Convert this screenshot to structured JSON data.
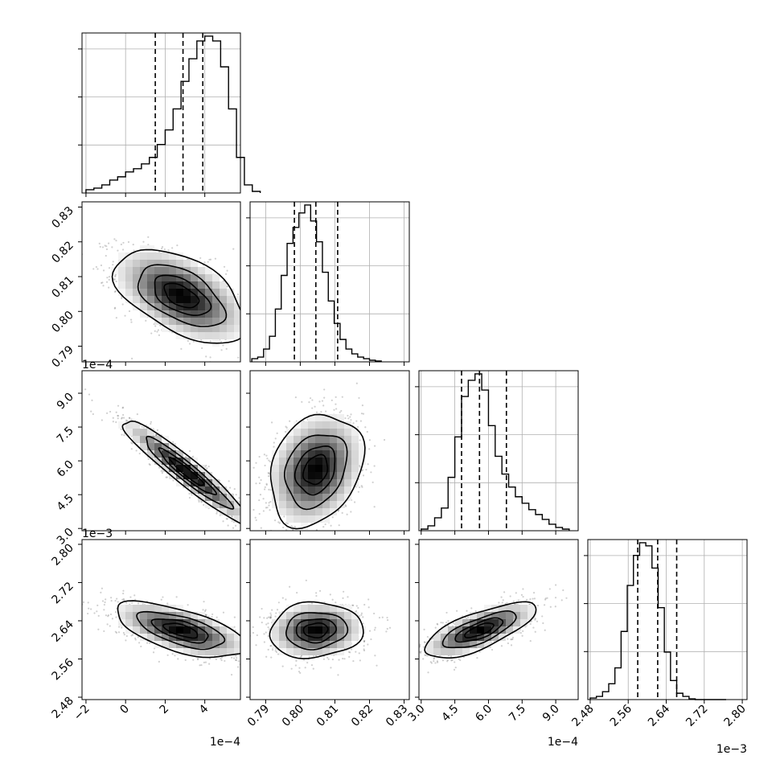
{
  "chart_data": {
    "type": "corner",
    "parameters": [
      {
        "axis_ticks": [
          -2,
          0,
          2,
          4
        ],
        "tick_labels": [
          "−2",
          "0",
          "2",
          "4"
        ],
        "axis_range": [
          -2.2,
          5.8
        ],
        "offset_label": "1e−4",
        "quantiles": [
          1.5,
          2.9,
          3.9
        ],
        "histogram": {
          "bin_start": -2.0,
          "bin_width": 0.4,
          "counts": [
            0.02,
            0.03,
            0.05,
            0.08,
            0.1,
            0.13,
            0.15,
            0.18,
            0.22,
            0.3,
            0.39,
            0.52,
            0.69,
            0.83,
            0.94,
            0.97,
            0.94,
            0.78,
            0.52,
            0.22,
            0.05,
            0.01
          ]
        }
      },
      {
        "axis_ticks": [
          0.79,
          0.8,
          0.81,
          0.82,
          0.83
        ],
        "tick_labels": [
          "0.79",
          "0.80",
          "0.81",
          "0.82",
          "0.83"
        ],
        "axis_range": [
          0.7855,
          0.8315
        ],
        "offset_label": "",
        "quantiles": [
          0.7983,
          0.8045,
          0.8108
        ],
        "histogram": {
          "bin_start": 0.786,
          "bin_width": 0.0017,
          "counts": [
            0.02,
            0.03,
            0.08,
            0.16,
            0.33,
            0.54,
            0.74,
            0.84,
            0.93,
            0.98,
            0.88,
            0.75,
            0.56,
            0.38,
            0.24,
            0.14,
            0.08,
            0.05,
            0.03,
            0.02,
            0.01,
            0.005
          ]
        }
      },
      {
        "axis_ticks": [
          3.0,
          4.5,
          6.0,
          7.5,
          9.0
        ],
        "tick_labels": [
          "3.0",
          "4.5",
          "6.0",
          "7.5",
          "9.0"
        ],
        "axis_range": [
          2.9,
          10.0
        ],
        "offset_label": "1e−4",
        "quantiles": [
          4.8,
          5.6,
          6.8
        ],
        "histogram": {
          "bin_start": 3.0,
          "bin_width": 0.3,
          "counts": [
            0.01,
            0.03,
            0.08,
            0.14,
            0.33,
            0.58,
            0.83,
            0.93,
            0.97,
            0.87,
            0.65,
            0.46,
            0.35,
            0.27,
            0.21,
            0.17,
            0.13,
            0.1,
            0.07,
            0.04,
            0.02,
            0.01
          ]
        }
      },
      {
        "axis_ticks": [
          2.48,
          2.56,
          2.64,
          2.72,
          2.8
        ],
        "tick_labels": [
          "2.48",
          "2.56",
          "2.64",
          "2.72",
          "2.80"
        ],
        "axis_range": [
          2.475,
          2.81
        ],
        "offset_label": "1e−3",
        "quantiles": [
          2.58,
          2.622,
          2.662
        ],
        "histogram": {
          "bin_start": 2.48,
          "bin_width": 0.013,
          "counts": [
            0.01,
            0.02,
            0.05,
            0.1,
            0.2,
            0.43,
            0.72,
            0.91,
            0.99,
            0.97,
            0.83,
            0.58,
            0.3,
            0.12,
            0.04,
            0.02,
            0.005,
            0.0,
            0.0,
            0.0,
            0.0,
            0.0
          ]
        }
      }
    ],
    "pairs": [
      {
        "x": 0,
        "y": 1,
        "mean": [
          2.8,
          0.8045
        ],
        "sd": [
          1.6,
          0.0065
        ],
        "rho": -0.52,
        "shape": "ellipse"
      },
      {
        "x": 0,
        "y": 2,
        "mean": [
          3.1,
          5.5
        ],
        "sd": [
          1.6,
          1.15
        ],
        "rho": -0.95,
        "shape": "diagonal"
      },
      {
        "x": 1,
        "y": 2,
        "mean": [
          0.8045,
          5.6
        ],
        "sd": [
          0.0065,
          1.2
        ],
        "rho": 0.25,
        "shape": "ellipse"
      },
      {
        "x": 0,
        "y": 3,
        "mean": [
          2.8,
          2.62
        ],
        "sd": [
          1.6,
          0.028
        ],
        "rho": -0.62,
        "shape": "ellipse"
      },
      {
        "x": 1,
        "y": 3,
        "mean": [
          0.8045,
          2.62
        ],
        "sd": [
          0.0065,
          0.028
        ],
        "rho": 0.08,
        "shape": "ellipse"
      },
      {
        "x": 2,
        "y": 3,
        "mean": [
          5.6,
          2.62
        ],
        "sd": [
          1.2,
          0.028
        ],
        "rho": 0.72,
        "shape": "ellipse"
      }
    ],
    "contour_levels": [
      "0.5σ",
      "1σ",
      "1.5σ",
      "2σ"
    ],
    "grid": true,
    "colors": {
      "points": "#555555",
      "density_dark": "#000000",
      "lines": "#000000"
    }
  }
}
